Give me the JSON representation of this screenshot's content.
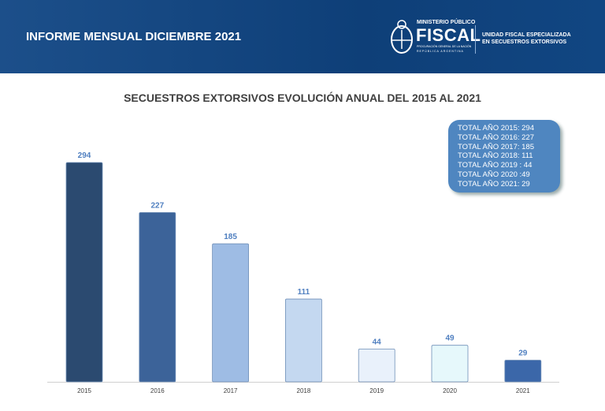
{
  "header": {
    "title": "INFORME MENSUAL DICIEMBRE 2021",
    "logo": {
      "ministry": "MINISTERIO PÚBLICO",
      "name": "FISCAL",
      "sub1": "PROCURACIÓN GENERAL DE LA NACIÓN",
      "sub2": "REPÚBLICA ARGENTINA"
    },
    "unit_line1": "UNIDAD FISCAL ESPECIALIZADA",
    "unit_line2": "EN SECUESTROS EXTORSIVOS"
  },
  "totals": [
    "TOTAL AÑO 2015: 294",
    "TOTAL AÑO 2016: 227",
    "TOTAL AÑO 2017: 185",
    "TOTAL AÑO 2018: 111",
    "TOTAL AÑO 2019 : 44",
    "TOTAL AÑO 2020 :49",
    "TOTAL AÑO 2021: 29"
  ],
  "chart_data": {
    "type": "bar",
    "title": "SECUESTROS EXTORSIVOS EVOLUCIÓN ANUAL DEL 2015 AL 2021",
    "categories": [
      "2015",
      "2016",
      "2017",
      "2018",
      "2019",
      "2020",
      "2021"
    ],
    "values": [
      294,
      227,
      185,
      111,
      44,
      49,
      29
    ],
    "colors": [
      "#2b4a70",
      "#3c6399",
      "#9ebce4",
      "#c4d8f0",
      "#e9f1fb",
      "#e6f8fb",
      "#3b67a9"
    ],
    "label_color": "#4f7fc0",
    "ylim": [
      0,
      300
    ],
    "grid": false
  }
}
